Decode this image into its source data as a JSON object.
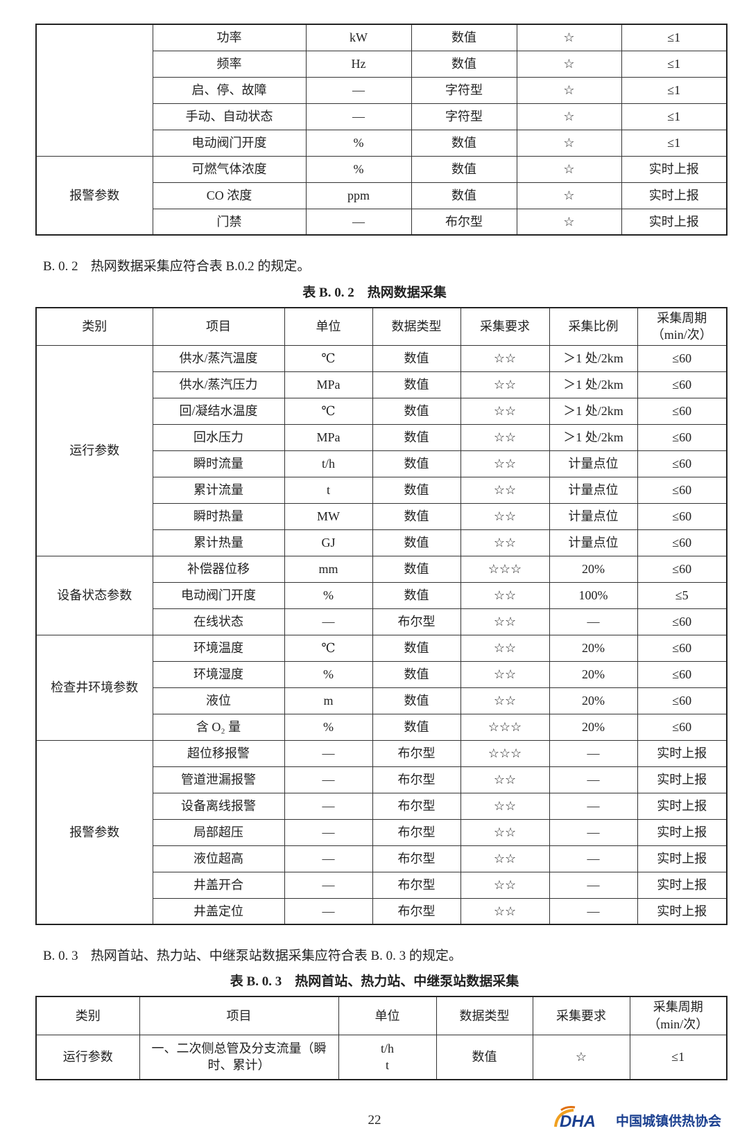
{
  "table1": {
    "groups": [
      {
        "items": [
          [
            "功率",
            "kW",
            "数值",
            "☆",
            "≤1"
          ],
          [
            "频率",
            "Hz",
            "数值",
            "☆",
            "≤1"
          ],
          [
            "启、停、故障",
            "—",
            "字符型",
            "☆",
            "≤1"
          ],
          [
            "手动、自动状态",
            "—",
            "字符型",
            "☆",
            "≤1"
          ],
          [
            "电动阀门开度",
            "%",
            "数值",
            "☆",
            "≤1"
          ]
        ]
      },
      {
        "category": "报警参数",
        "items": [
          [
            "可燃气体浓度",
            "%",
            "数值",
            "☆",
            "实时上报"
          ],
          [
            "CO 浓度",
            "ppm",
            "数值",
            "☆",
            "实时上报"
          ],
          [
            "门禁",
            "—",
            "布尔型",
            "☆",
            "实时上报"
          ]
        ]
      }
    ]
  },
  "section_b02": {
    "number": "B. 0. 2",
    "text": "热网数据采集应符合表 B.0.2 的规定。"
  },
  "table2": {
    "title": "表 B. 0. 2　热网数据采集",
    "header": [
      "类别",
      "项目",
      "单位",
      "数据类型",
      "采集要求",
      "采集比例",
      "采集周期\n（min/次）"
    ],
    "groups": [
      {
        "category": "运行参数",
        "items": [
          [
            "供水/蒸汽温度",
            "℃",
            "数值",
            "☆☆",
            "＞1 处/2km",
            "≤60"
          ],
          [
            "供水/蒸汽压力",
            "MPa",
            "数值",
            "☆☆",
            "＞1 处/2km",
            "≤60"
          ],
          [
            "回/凝结水温度",
            "℃",
            "数值",
            "☆☆",
            "＞1 处/2km",
            "≤60"
          ],
          [
            "回水压力",
            "MPa",
            "数值",
            "☆☆",
            "＞1 处/2km",
            "≤60"
          ],
          [
            "瞬时流量",
            "t/h",
            "数值",
            "☆☆",
            "计量点位",
            "≤60"
          ],
          [
            "累计流量",
            "t",
            "数值",
            "☆☆",
            "计量点位",
            "≤60"
          ],
          [
            "瞬时热量",
            "MW",
            "数值",
            "☆☆",
            "计量点位",
            "≤60"
          ],
          [
            "累计热量",
            "GJ",
            "数值",
            "☆☆",
            "计量点位",
            "≤60"
          ]
        ]
      },
      {
        "category": "设备状态参数",
        "items": [
          [
            "补偿器位移",
            "mm",
            "数值",
            "☆☆☆",
            "20%",
            "≤60"
          ],
          [
            "电动阀门开度",
            "%",
            "数值",
            "☆☆",
            "100%",
            "≤5"
          ],
          [
            "在线状态",
            "—",
            "布尔型",
            "☆☆",
            "—",
            "≤60"
          ]
        ]
      },
      {
        "category": "检查井环境参数",
        "items": [
          [
            "环境温度",
            "℃",
            "数值",
            "☆☆",
            "20%",
            "≤60"
          ],
          [
            "环境湿度",
            "%",
            "数值",
            "☆☆",
            "20%",
            "≤60"
          ],
          [
            "液位",
            "m",
            "数值",
            "☆☆",
            "20%",
            "≤60"
          ],
          [
            "含 O₂ 量",
            "%",
            "数值",
            "☆☆☆",
            "20%",
            "≤60"
          ]
        ]
      },
      {
        "category": "报警参数",
        "items": [
          [
            "超位移报警",
            "—",
            "布尔型",
            "☆☆☆",
            "—",
            "实时上报"
          ],
          [
            "管道泄漏报警",
            "—",
            "布尔型",
            "☆☆",
            "—",
            "实时上报"
          ],
          [
            "设备离线报警",
            "—",
            "布尔型",
            "☆☆",
            "—",
            "实时上报"
          ],
          [
            "局部超压",
            "—",
            "布尔型",
            "☆☆",
            "—",
            "实时上报"
          ],
          [
            "液位超高",
            "—",
            "布尔型",
            "☆☆",
            "—",
            "实时上报"
          ],
          [
            "井盖开合",
            "—",
            "布尔型",
            "☆☆",
            "—",
            "实时上报"
          ],
          [
            "井盖定位",
            "—",
            "布尔型",
            "☆☆",
            "—",
            "实时上报"
          ]
        ]
      }
    ]
  },
  "section_b03": {
    "number": "B. 0. 3",
    "text": "热网首站、热力站、中继泵站数据采集应符合表 B. 0. 3 的规定。"
  },
  "table3": {
    "title": "表 B. 0. 3　热网首站、热力站、中继泵站数据采集",
    "header": [
      "类别",
      "项目",
      "单位",
      "数据类型",
      "采集要求",
      "采集周期\n（min/次）"
    ],
    "groups": [
      {
        "category": "运行参数",
        "items": [
          [
            "一、二次侧总管及分支流量（瞬时、累计）",
            "t/h\nt",
            "数值",
            "☆",
            "≤1"
          ]
        ]
      }
    ]
  },
  "page_number": "22",
  "logo": {
    "abbr": "DHA",
    "name": "中国城镇供热协会"
  }
}
